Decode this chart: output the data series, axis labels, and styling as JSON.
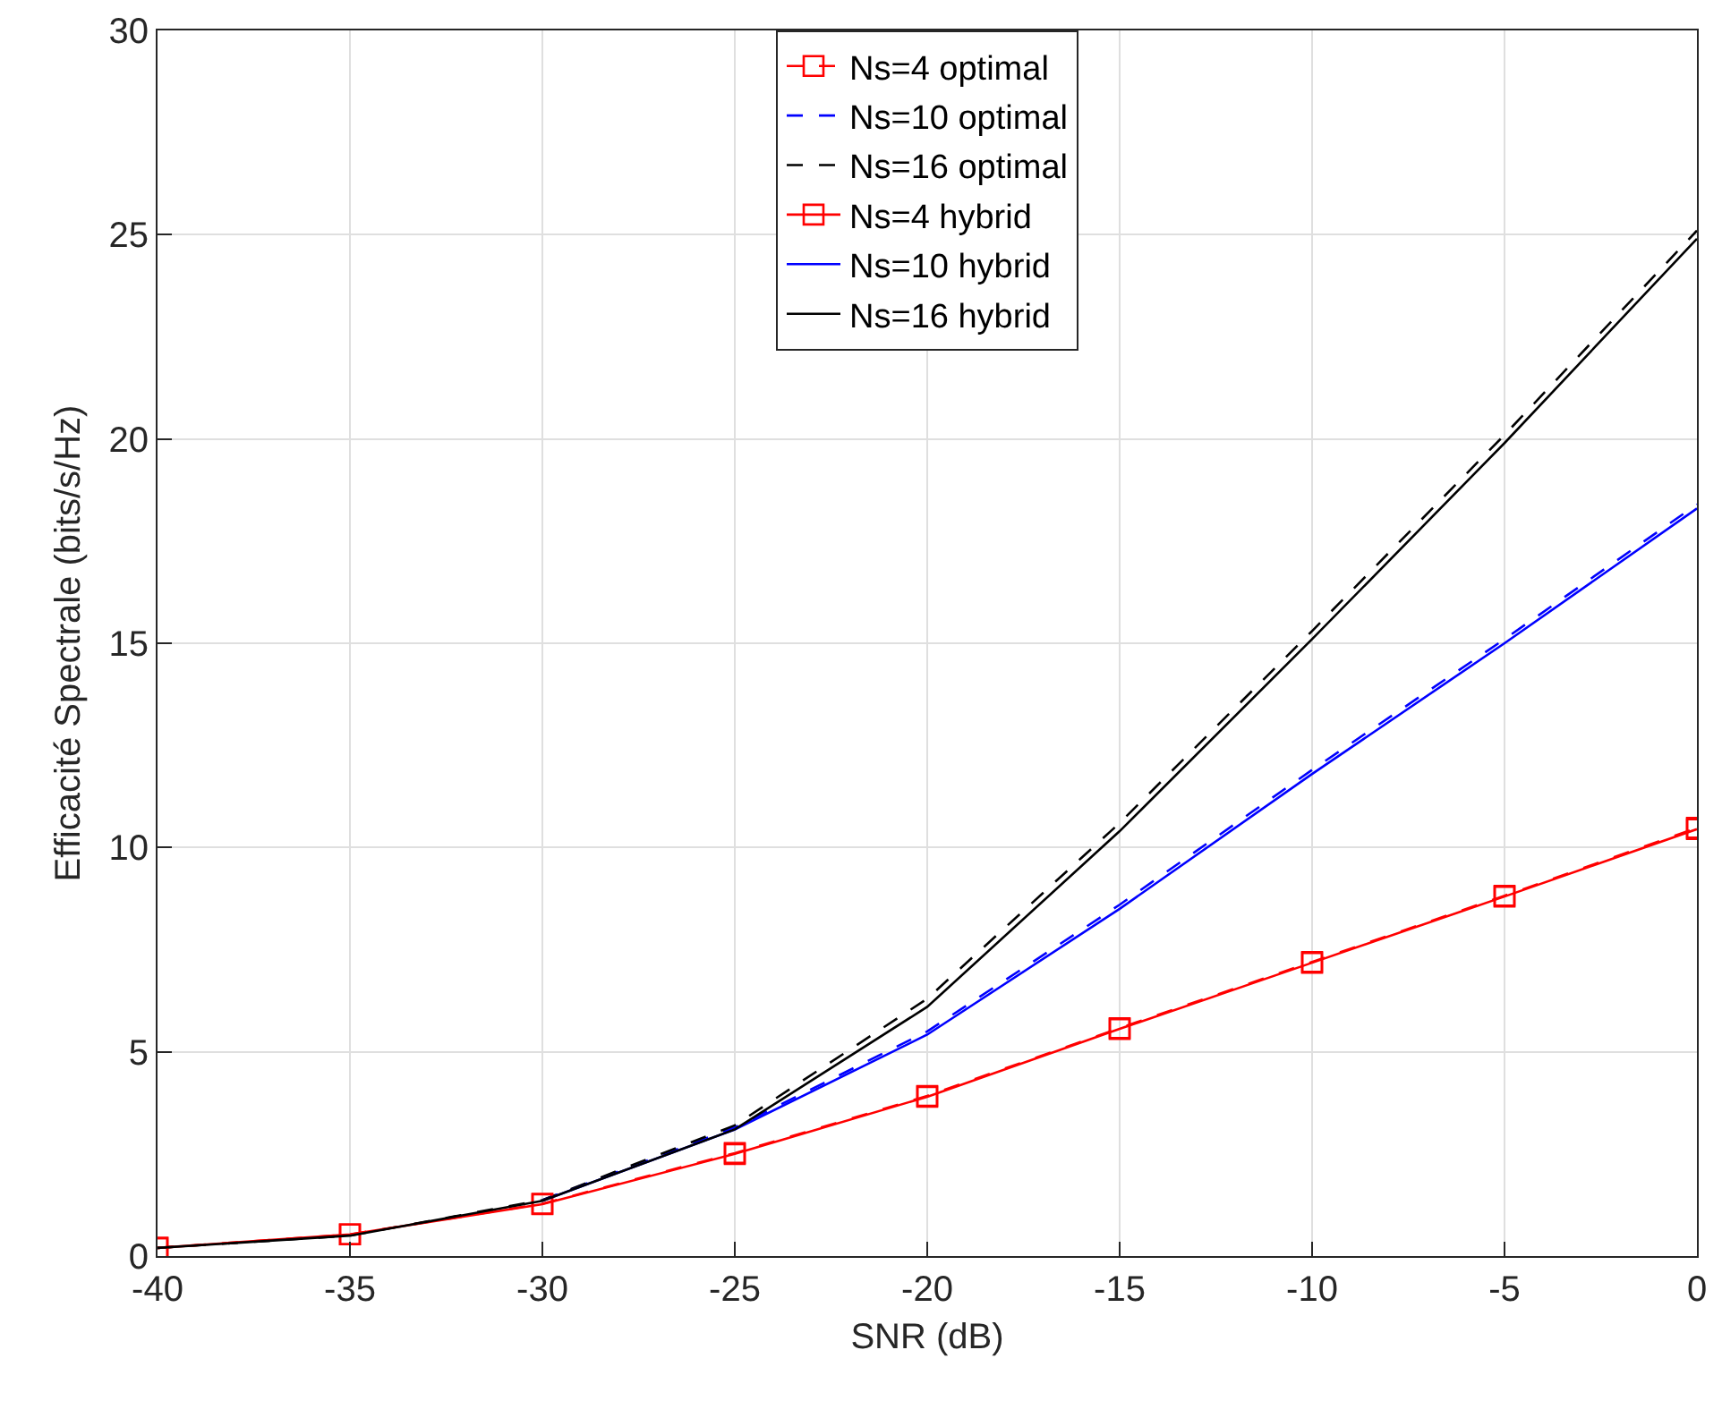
{
  "chart_data": {
    "type": "line",
    "xlabel": "SNR (dB)",
    "ylabel": "Efficacité Spectrale (bits/s/Hz)",
    "x": [
      -40,
      -35,
      -30,
      -25,
      -20,
      -15,
      -10,
      -5,
      0
    ],
    "xlim": [
      -40,
      0
    ],
    "xticks": [
      -40,
      -35,
      -30,
      -25,
      -20,
      -15,
      -10,
      -5,
      0
    ],
    "ylim": [
      0,
      30
    ],
    "yticks": [
      0,
      5,
      10,
      15,
      20,
      25,
      30
    ],
    "grid": true,
    "legend": "top",
    "series": [
      {
        "name": "Ns=4 optimal",
        "color": "#ff0000",
        "line_style": "dashed",
        "marker": "square",
        "values": [
          0.2,
          0.53,
          1.28,
          2.52,
          3.92,
          5.58,
          7.2,
          8.82,
          10.48
        ]
      },
      {
        "name": "Ns=10 optimal",
        "color": "#0000ff",
        "line_style": "dashed",
        "marker": "none",
        "values": [
          null,
          null,
          1.37,
          3.15,
          5.5,
          8.6,
          11.9,
          15.1,
          18.4
        ]
      },
      {
        "name": "Ns=16 optimal",
        "color": "#000000",
        "line_style": "dashed",
        "marker": "none",
        "values": [
          0.2,
          0.5,
          1.37,
          3.2,
          6.3,
          10.6,
          15.3,
          20.1,
          25.1
        ]
      },
      {
        "name": "Ns=4 hybrid",
        "color": "#ff0000",
        "line_style": "solid",
        "marker": "square",
        "values": [
          0.2,
          0.53,
          1.27,
          2.5,
          3.9,
          5.56,
          7.18,
          8.8,
          10.45
        ]
      },
      {
        "name": "Ns=10 hybrid",
        "color": "#0000ff",
        "line_style": "solid",
        "marker": "none",
        "values": [
          null,
          null,
          1.35,
          3.1,
          5.42,
          8.5,
          11.8,
          15.0,
          18.3
        ]
      },
      {
        "name": "Ns=16 hybrid",
        "color": "#000000",
        "line_style": "solid",
        "marker": "none",
        "values": [
          0.2,
          0.5,
          1.35,
          3.1,
          6.1,
          10.4,
          15.1,
          19.9,
          24.9
        ]
      }
    ]
  }
}
